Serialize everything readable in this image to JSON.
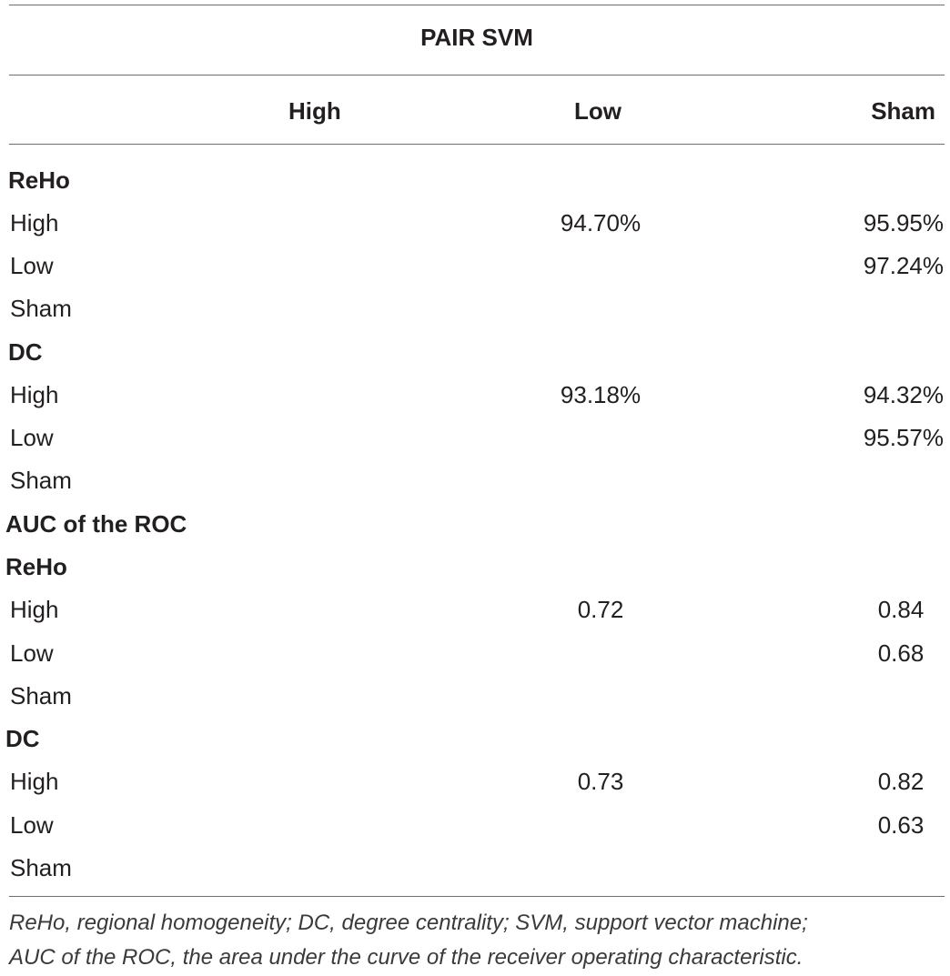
{
  "table": {
    "title": "PAIR SVM",
    "columns": [
      "High",
      "Low",
      "Sham"
    ],
    "svm": {
      "reho": {
        "label": "ReHo",
        "rows": [
          {
            "label": "High",
            "low": "94.70%",
            "sham": "95.95%"
          },
          {
            "label": "Low",
            "low": "",
            "sham": "97.24%"
          },
          {
            "label": "Sham",
            "low": "",
            "sham": ""
          }
        ]
      },
      "dc": {
        "label": "DC",
        "rows": [
          {
            "label": "High",
            "low": "93.18%",
            "sham": "94.32%"
          },
          {
            "label": "Low",
            "low": "",
            "sham": "95.57%"
          },
          {
            "label": "Sham",
            "low": "",
            "sham": ""
          }
        ]
      }
    },
    "auc": {
      "label": "AUC of the ROC",
      "reho": {
        "label": "ReHo",
        "rows": [
          {
            "label": "High",
            "low": "0.72",
            "sham": "0.84"
          },
          {
            "label": "Low",
            "low": "",
            "sham": "0.68"
          },
          {
            "label": "Sham",
            "low": "",
            "sham": ""
          }
        ]
      },
      "dc": {
        "label": "DC",
        "rows": [
          {
            "label": "High",
            "low": "0.73",
            "sham": "0.82"
          },
          {
            "label": "Low",
            "low": "",
            "sham": "0.63"
          },
          {
            "label": "Sham",
            "low": "",
            "sham": ""
          }
        ]
      }
    },
    "footnote": {
      "line1": "ReHo, regional homogeneity; DC, degree centrality; SVM, support vector machine;",
      "line2": "AUC of the ROC, the area under the curve of the receiver operating characteristic."
    }
  }
}
